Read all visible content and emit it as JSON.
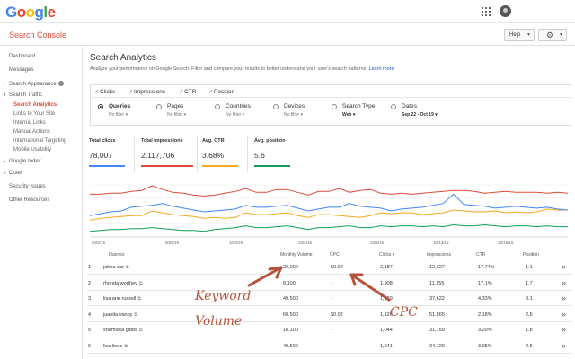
{
  "header": {
    "logo_letters": [
      "G",
      "o",
      "o",
      "g",
      "l",
      "e"
    ],
    "product": "Search Console",
    "help_label": "Help",
    "gear_icon": "⚙"
  },
  "sidebar": {
    "items": [
      {
        "label": "Dashboard"
      },
      {
        "label": "Messages"
      },
      {
        "label": "Search Appearance",
        "arrow": "▸"
      },
      {
        "label": "Search Traffic",
        "arrow": "▾"
      },
      {
        "label": "Search Analytics"
      },
      {
        "label": "Links to Your Site"
      },
      {
        "label": "Internal Links"
      },
      {
        "label": "Manual Actions"
      },
      {
        "label": "International Targeting"
      },
      {
        "label": "Mobile Usability"
      },
      {
        "label": "Google Index",
        "arrow": "▸"
      },
      {
        "label": "Crawl",
        "arrow": "▸"
      },
      {
        "label": "Security Issues"
      },
      {
        "label": "Other Resources"
      }
    ]
  },
  "main": {
    "title": "Search Analytics",
    "description": "Analyze your performance on Google Search. Filter and compare your results to better understand your user's search patterns.",
    "learn_more": "Learn more",
    "metrics": [
      {
        "label": "Clicks",
        "checked": true
      },
      {
        "label": "Impressions",
        "checked": true
      },
      {
        "label": "CTR",
        "checked": true
      },
      {
        "label": "Position",
        "checked": true
      }
    ],
    "dimensions": [
      {
        "label": "Queries",
        "sub": "No filter ▾",
        "selected": true
      },
      {
        "label": "Pages",
        "sub": "No filter ▾",
        "selected": false
      },
      {
        "label": "Countries",
        "sub": "No filter ▾",
        "selected": false
      },
      {
        "label": "Devices",
        "sub": "No filter ▾",
        "selected": false
      },
      {
        "label": "Search Type",
        "sub": "Web ▾",
        "selected": false
      },
      {
        "label": "Dates",
        "sub": "Sep 22 - Oct 19 ▾",
        "selected": false
      }
    ],
    "kpis": [
      {
        "label": "Total clicks",
        "value": "78,007",
        "color": "#4285f4"
      },
      {
        "label": "Total impressions",
        "value": "2,117,706",
        "color": "#dd4b39"
      },
      {
        "label": "Avg. CTR",
        "value": "3.68%",
        "color": "#f4a81d"
      },
      {
        "label": "Avg. position",
        "value": "5.6",
        "color": "#0f9d58"
      }
    ]
  },
  "chart_data": {
    "type": "line",
    "x_tick_labels": [
      "9/22/15",
      "9/29/15",
      "10/3/15",
      "10/4/15",
      "10/8/15",
      "10/13/15",
      "10/16/15"
    ],
    "series": [
      {
        "color": "#dd4b39",
        "values": [
          10,
          10,
          9,
          9,
          7,
          6,
          1,
          5,
          8,
          9,
          11,
          12,
          11,
          9,
          7,
          4,
          8,
          8,
          5,
          5,
          8,
          11,
          7,
          7,
          4,
          8,
          6,
          5,
          9,
          10,
          9,
          10,
          9,
          8,
          7,
          6,
          6,
          7,
          9,
          8,
          7,
          8,
          8,
          8,
          9,
          8,
          9
        ]
      },
      {
        "color": "#f4a81d",
        "values": [
          38,
          36,
          35,
          34,
          33,
          33,
          28,
          30,
          32,
          33,
          34,
          36,
          35,
          36,
          35,
          30,
          32,
          32,
          31,
          30,
          33,
          35,
          32,
          32,
          33,
          34,
          35,
          33,
          30,
          31,
          30,
          30,
          32,
          31,
          30,
          27,
          28,
          29,
          29,
          28,
          30,
          29,
          30,
          29,
          26,
          27,
          27
        ]
      },
      {
        "color": "#4285f4",
        "values": [
          33,
          31,
          29,
          28,
          24,
          23,
          22,
          20,
          23,
          25,
          27,
          29,
          28,
          27,
          26,
          22,
          24,
          24,
          23,
          22,
          25,
          28,
          26,
          24,
          24,
          20,
          23,
          24,
          25,
          28,
          26,
          25,
          24,
          22,
          20,
          10,
          21,
          22,
          23,
          25,
          24,
          23,
          24,
          25,
          24,
          26,
          27
        ]
      },
      {
        "color": "#0f9d58",
        "values": [
          50,
          49,
          48,
          48,
          47,
          47,
          46,
          47,
          48,
          49,
          49,
          50,
          48,
          47,
          46,
          44,
          46,
          46,
          45,
          44,
          46,
          48,
          46,
          46,
          45,
          44,
          46,
          46,
          44,
          45,
          44,
          44,
          45,
          44,
          45,
          43,
          44,
          44,
          43,
          44,
          45,
          44,
          44,
          45,
          44,
          45,
          45
        ]
      }
    ],
    "grid": true
  },
  "table": {
    "headers": [
      "Queries",
      "Monthly Volume",
      "CPC",
      "Clicks ▾",
      "Impressions",
      "CTR",
      "Position"
    ],
    "rows": [
      {
        "n": "1",
        "query": "jahira dar",
        "volume": "22,200",
        "cpc": "$0.02",
        "clicks": "2,187",
        "impressions": "12,327",
        "ctr": "17.74%",
        "position": "1.1"
      },
      {
        "n": "2",
        "query": "rhonda worthey",
        "volume": "8,100",
        "cpc": "-",
        "clicks": "1,908",
        "impressions": "11,155",
        "ctr": "17.1%",
        "position": "1.7"
      },
      {
        "n": "3",
        "query": "lisa ann russell",
        "volume": "49,500",
        "cpc": "-",
        "clicks": "1,629",
        "impressions": "37,622",
        "ctr": "4.33%",
        "position": "3.1"
      },
      {
        "n": "4",
        "query": "juanita vanoy",
        "volume": "60,500",
        "cpc": "$0.02",
        "clicks": "1,126",
        "impressions": "51,565",
        "ctr": "2.18%",
        "position": "2.5"
      },
      {
        "n": "5",
        "query": "shamicka gibbs",
        "volume": "18,100",
        "cpc": "-",
        "clicks": "1,044",
        "impressions": "31,759",
        "ctr": "3.29%",
        "position": "1.8"
      },
      {
        "n": "6",
        "query": "lisa linde",
        "volume": "49,500",
        "cpc": "-",
        "clicks": "1,041",
        "impressions": "34,120",
        "ctr": "3.05%",
        "position": "2.5"
      }
    ],
    "row_action": "»"
  },
  "annotations": {
    "keyword_line1": "Keyword",
    "keyword_line2": "Volume",
    "cpc": "CPC",
    "arrow_color": "#b5523a"
  }
}
